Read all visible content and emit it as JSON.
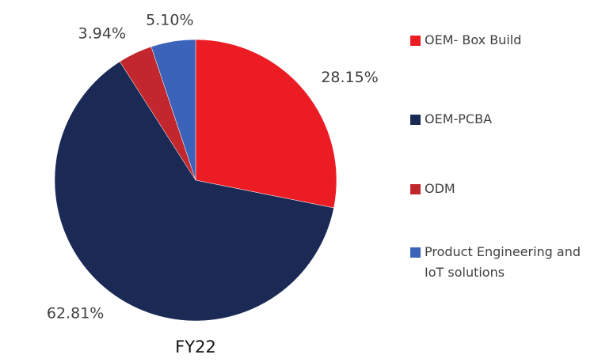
{
  "chart_data": {
    "type": "pie",
    "title": "FY22",
    "categories": [
      "OEM- Box Build",
      "OEM-PCBA",
      "ODM",
      "Product Engineering and IoT solutions"
    ],
    "values": [
      28.15,
      62.81,
      3.94,
      5.1
    ],
    "value_labels": [
      "28.15%",
      "62.81%",
      "3.94%",
      "5.10%"
    ],
    "colors": [
      "#ec1c24",
      "#1b2955",
      "#c1272d",
      "#3b63b9"
    ],
    "legend": "right"
  }
}
